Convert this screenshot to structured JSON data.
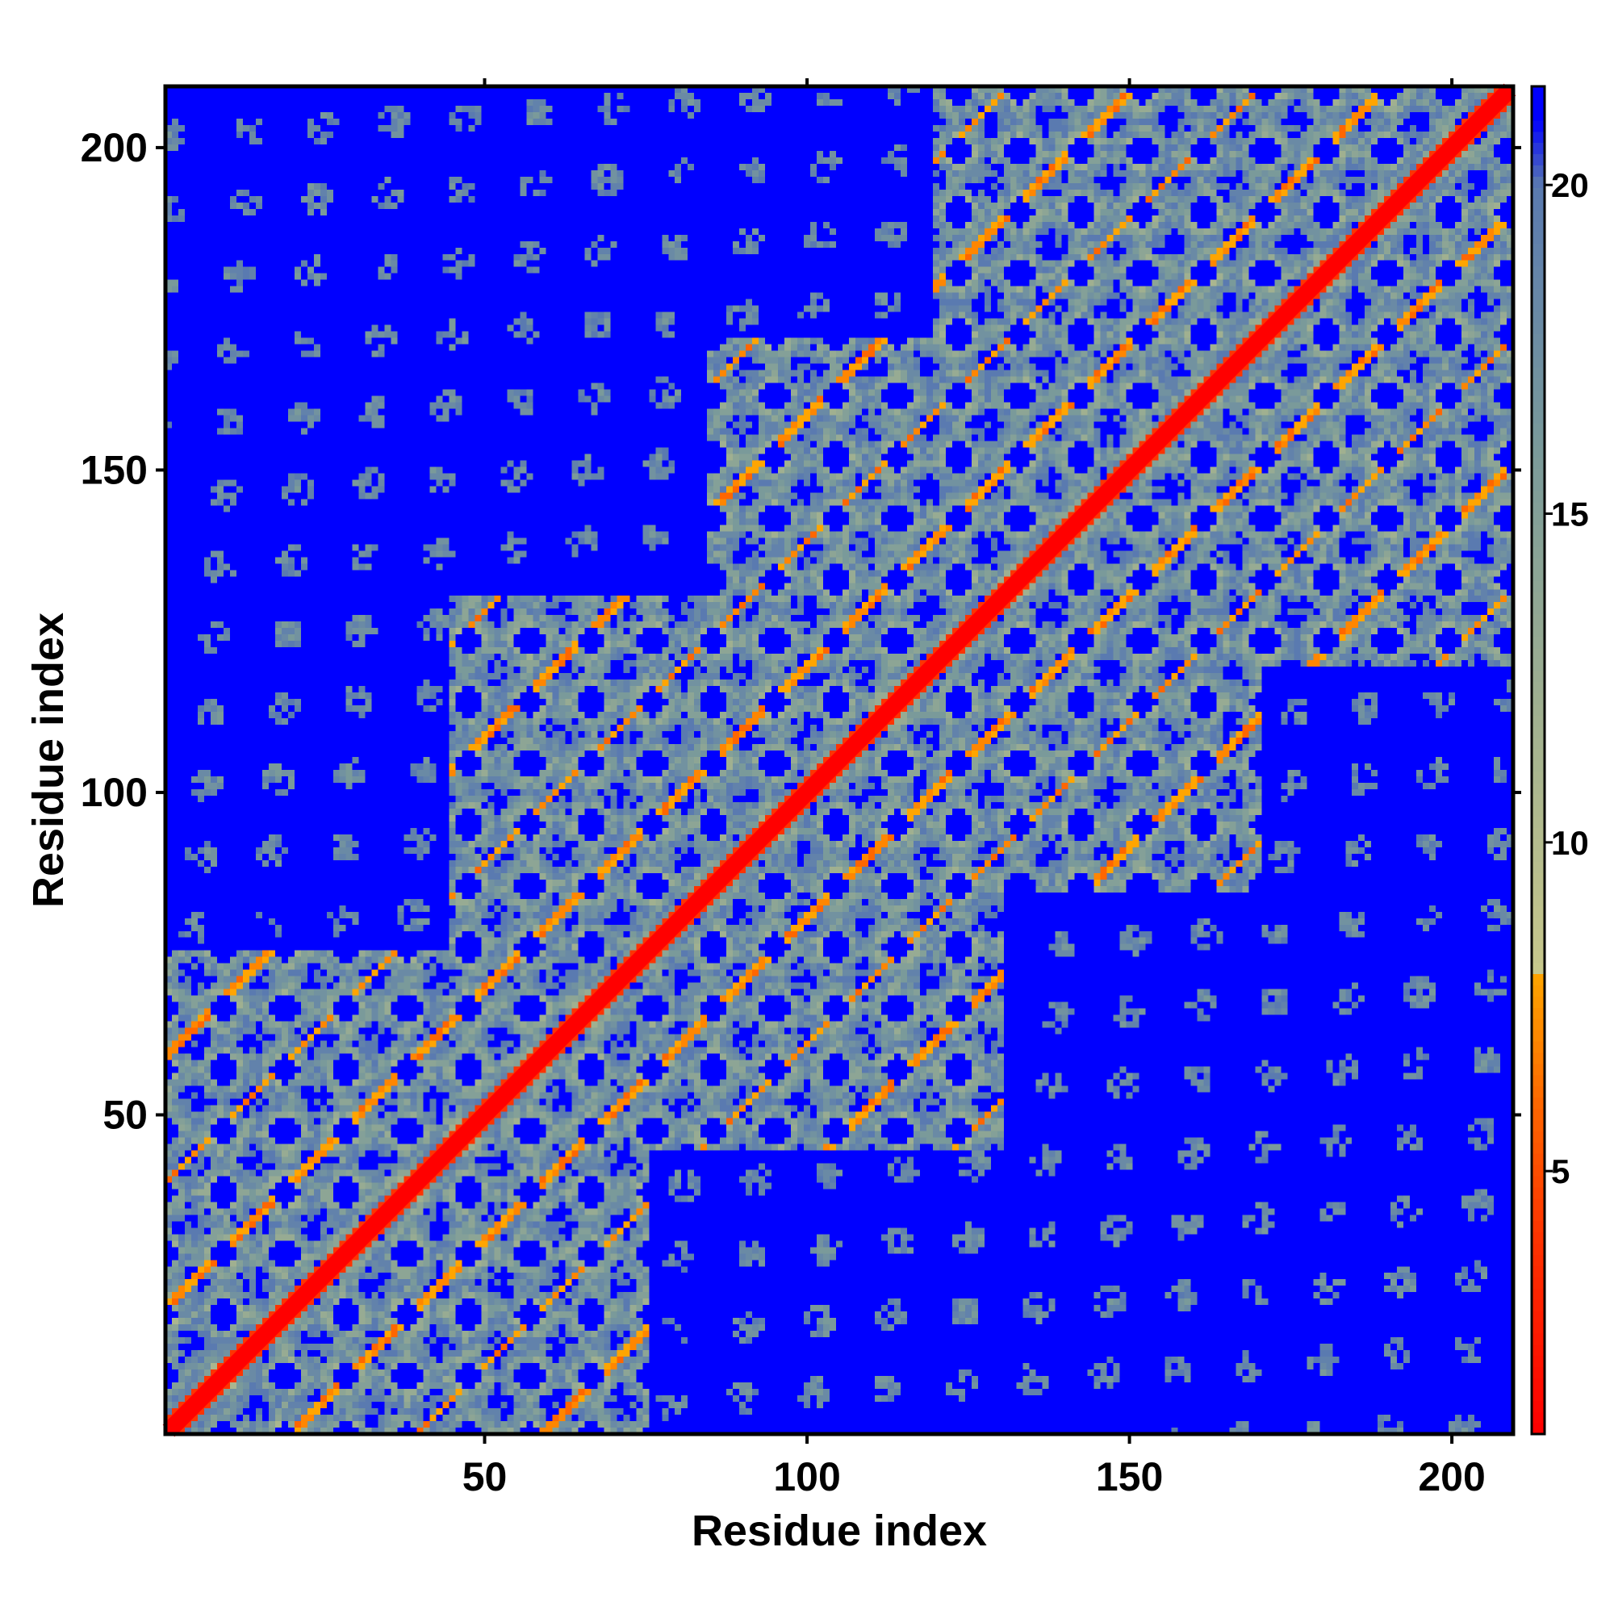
{
  "chart_data": {
    "type": "heatmap",
    "title": "",
    "xlabel": "Residue index",
    "ylabel": "Residue index",
    "n_residues": 209,
    "xlim": [
      1,
      209
    ],
    "ylim": [
      1,
      209
    ],
    "x_ticks": [
      50,
      100,
      150,
      200
    ],
    "y_ticks": [
      50,
      100,
      150,
      200
    ],
    "colorbar": {
      "ticks": [
        5,
        10,
        15,
        20
      ],
      "range": [
        1,
        21.5
      ],
      "colors": [
        {
          "value": 1,
          "color": "#ff0000"
        },
        {
          "value": 4,
          "color": "#ff3300"
        },
        {
          "value": 6,
          "color": "#ff6600"
        },
        {
          "value": 8,
          "color": "#ffa500"
        },
        {
          "value": 8.01,
          "color": "#c8c88c"
        },
        {
          "value": 12,
          "color": "#a0b090"
        },
        {
          "value": 16,
          "color": "#7a9a9a"
        },
        {
          "value": 20,
          "color": "#5a7ab0"
        },
        {
          "value": 21,
          "color": "#0000ff"
        }
      ]
    },
    "cutoff": 21,
    "background_color": "#0000ff",
    "diagonal_color": "#ff0000",
    "domain_blocks": [
      {
        "start": 1,
        "end": 75
      },
      {
        "start": 45,
        "end": 130
      },
      {
        "start": 85,
        "end": 170
      },
      {
        "start": 120,
        "end": 209
      }
    ]
  }
}
